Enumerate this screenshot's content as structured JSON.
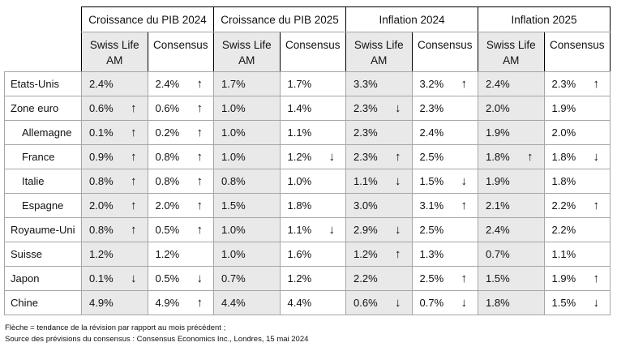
{
  "colors": {
    "swiss_life_fill": "#e9e9e9",
    "grid_border": "#a6a6a6",
    "header_border": "#000000",
    "text": "#111111"
  },
  "chart_data": {
    "type": "table",
    "column_groups": [
      "Croissance du PIB 2024",
      "Croissance du PIB 2025",
      "Inflation 2024",
      "Inflation 2025"
    ],
    "subcolumns": [
      "Swiss Life AM",
      "Consensus"
    ],
    "trend_legend": "arrow = revision tendency vs previous month",
    "rows": [
      {
        "label": "Etats-Unis",
        "indent": false,
        "cells": [
          {
            "v": "2.4%",
            "a": ""
          },
          {
            "v": "2.4%",
            "a": "↑"
          },
          {
            "v": "1.7%",
            "a": ""
          },
          {
            "v": "1.7%",
            "a": ""
          },
          {
            "v": "3.3%",
            "a": ""
          },
          {
            "v": "3.2%",
            "a": "↑"
          },
          {
            "v": "2.4%",
            "a": ""
          },
          {
            "v": "2.3%",
            "a": "↑"
          }
        ]
      },
      {
        "label": "Zone euro",
        "indent": false,
        "cells": [
          {
            "v": "0.6%",
            "a": "↑"
          },
          {
            "v": "0.6%",
            "a": "↑"
          },
          {
            "v": "1.0%",
            "a": ""
          },
          {
            "v": "1.4%",
            "a": ""
          },
          {
            "v": "2.3%",
            "a": "↓"
          },
          {
            "v": "2.3%",
            "a": ""
          },
          {
            "v": "2.0%",
            "a": ""
          },
          {
            "v": "1.9%",
            "a": ""
          }
        ]
      },
      {
        "label": "Allemagne",
        "indent": true,
        "cells": [
          {
            "v": "0.1%",
            "a": "↑"
          },
          {
            "v": "0.2%",
            "a": "↑"
          },
          {
            "v": "1.0%",
            "a": ""
          },
          {
            "v": "1.1%",
            "a": ""
          },
          {
            "v": "2.3%",
            "a": ""
          },
          {
            "v": "2.4%",
            "a": ""
          },
          {
            "v": "1.9%",
            "a": ""
          },
          {
            "v": "2.0%",
            "a": ""
          }
        ]
      },
      {
        "label": "France",
        "indent": true,
        "cells": [
          {
            "v": "0.9%",
            "a": "↑"
          },
          {
            "v": "0.8%",
            "a": "↑"
          },
          {
            "v": "1.0%",
            "a": ""
          },
          {
            "v": "1.2%",
            "a": "↓"
          },
          {
            "v": "2.3%",
            "a": "↑"
          },
          {
            "v": "2.5%",
            "a": ""
          },
          {
            "v": "1.8%",
            "a": "↑"
          },
          {
            "v": "1.8%",
            "a": "↓"
          }
        ]
      },
      {
        "label": "Italie",
        "indent": true,
        "cells": [
          {
            "v": "0.8%",
            "a": "↑"
          },
          {
            "v": "0.8%",
            "a": "↑"
          },
          {
            "v": "0.8%",
            "a": ""
          },
          {
            "v": "1.0%",
            "a": ""
          },
          {
            "v": "1.1%",
            "a": "↓"
          },
          {
            "v": "1.5%",
            "a": "↓"
          },
          {
            "v": "1.9%",
            "a": ""
          },
          {
            "v": "1.8%",
            "a": ""
          }
        ]
      },
      {
        "label": "Espagne",
        "indent": true,
        "cells": [
          {
            "v": "2.0%",
            "a": "↑"
          },
          {
            "v": "2.0%",
            "a": "↑"
          },
          {
            "v": "1.5%",
            "a": ""
          },
          {
            "v": "1.8%",
            "a": ""
          },
          {
            "v": "3.0%",
            "a": ""
          },
          {
            "v": "3.1%",
            "a": "↑"
          },
          {
            "v": "2.1%",
            "a": ""
          },
          {
            "v": "2.2%",
            "a": "↑"
          }
        ]
      },
      {
        "label": "Royaume-Uni",
        "indent": false,
        "cells": [
          {
            "v": "0.8%",
            "a": "↑"
          },
          {
            "v": "0.5%",
            "a": "↑"
          },
          {
            "v": "1.0%",
            "a": ""
          },
          {
            "v": "1.1%",
            "a": "↓"
          },
          {
            "v": "2.9%",
            "a": "↓"
          },
          {
            "v": "2.5%",
            "a": ""
          },
          {
            "v": "2.4%",
            "a": ""
          },
          {
            "v": "2.2%",
            "a": ""
          }
        ]
      },
      {
        "label": "Suisse",
        "indent": false,
        "cells": [
          {
            "v": "1.2%",
            "a": ""
          },
          {
            "v": "1.2%",
            "a": ""
          },
          {
            "v": "1.0%",
            "a": ""
          },
          {
            "v": "1.6%",
            "a": ""
          },
          {
            "v": "1.2%",
            "a": "↑"
          },
          {
            "v": "1.3%",
            "a": ""
          },
          {
            "v": "0.7%",
            "a": ""
          },
          {
            "v": "1.1%",
            "a": ""
          }
        ]
      },
      {
        "label": "Japon",
        "indent": false,
        "cells": [
          {
            "v": "0.1%",
            "a": "↓"
          },
          {
            "v": "0.5%",
            "a": "↓"
          },
          {
            "v": "0.7%",
            "a": ""
          },
          {
            "v": "1.2%",
            "a": ""
          },
          {
            "v": "2.2%",
            "a": ""
          },
          {
            "v": "2.5%",
            "a": "↑"
          },
          {
            "v": "1.5%",
            "a": ""
          },
          {
            "v": "1.9%",
            "a": "↑"
          }
        ]
      },
      {
        "label": "Chine",
        "indent": false,
        "cells": [
          {
            "v": "4.9%",
            "a": ""
          },
          {
            "v": "4.9%",
            "a": "↑"
          },
          {
            "v": "4.4%",
            "a": ""
          },
          {
            "v": "4.4%",
            "a": ""
          },
          {
            "v": "0.6%",
            "a": "↓"
          },
          {
            "v": "0.7%",
            "a": "↓"
          },
          {
            "v": "1.8%",
            "a": ""
          },
          {
            "v": "1.5%",
            "a": "↓"
          }
        ]
      }
    ]
  },
  "footnotes": {
    "line1": "Flèche = tendance de la révision par rapport au mois précédent ;",
    "line2": "Source des prévisions du consensus : Consensus Economics Inc., Londres, 15 mai 2024"
  }
}
